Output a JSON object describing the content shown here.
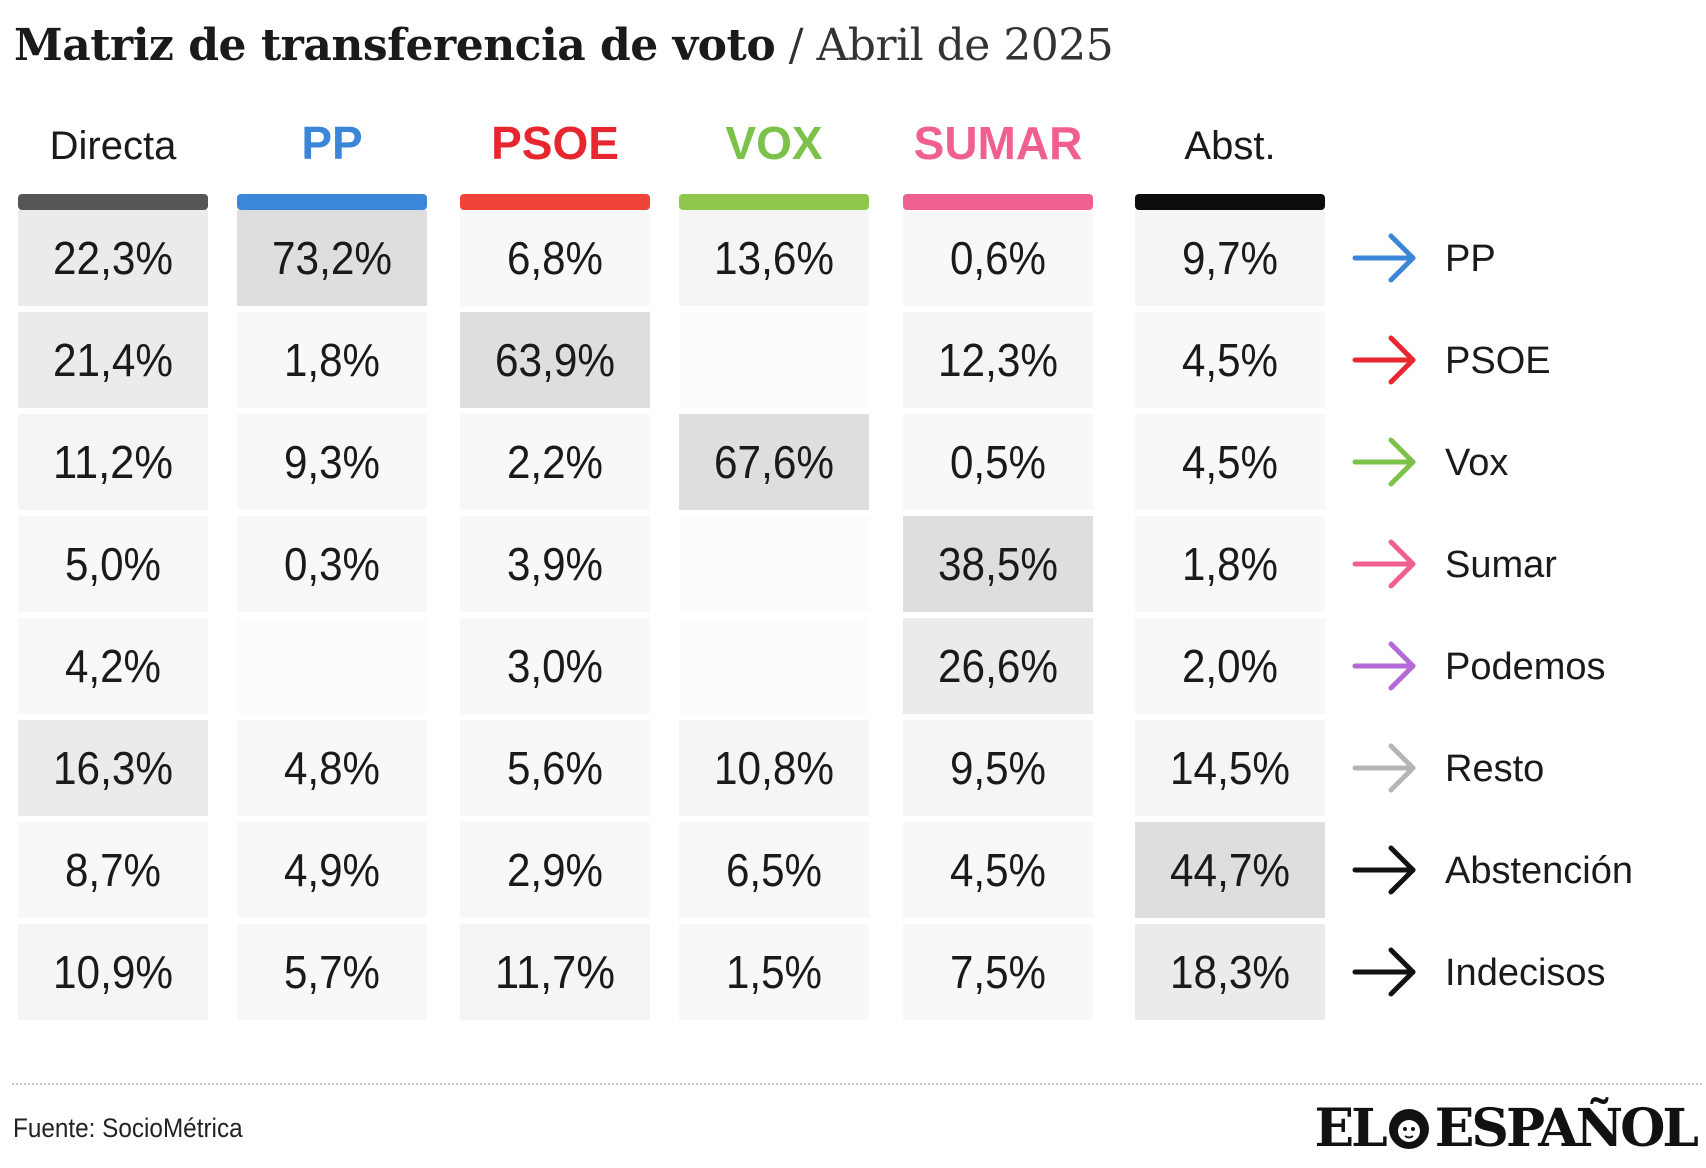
{
  "title": {
    "main": "Matriz de transferencia de voto",
    "separator": "/",
    "sub": "Abril de 2025"
  },
  "chart_data": {
    "type": "table",
    "columns": [
      {
        "label": "Directa",
        "color": "#555555",
        "header_color": "#1a1a1a",
        "bold": false
      },
      {
        "label": "PP",
        "color": "#3b86d8",
        "header_color": "#3b86d8",
        "bold": true
      },
      {
        "label": "PSOE",
        "color": "#f0433a",
        "header_color": "#e8262f",
        "bold": true
      },
      {
        "label": "VOX",
        "color": "#8ec64e",
        "header_color": "#7cc24a",
        "bold": true
      },
      {
        "label": "SUMAR",
        "color": "#f0608e",
        "header_color": "#f0608e",
        "bold": true
      },
      {
        "label": "Abst.",
        "color": "#0d0d0d",
        "header_color": "#1a1a1a",
        "bold": false
      }
    ],
    "rows": [
      {
        "label": "PP",
        "arrow_color": "#3b86d8",
        "values": [
          "22,3%",
          "73,2%",
          "6,8%",
          "13,6%",
          "0,6%",
          "9,7%"
        ]
      },
      {
        "label": "PSOE",
        "arrow_color": "#e8262f",
        "values": [
          "21,4%",
          "1,8%",
          "63,9%",
          "",
          "12,3%",
          "4,5%"
        ]
      },
      {
        "label": "Vox",
        "arrow_color": "#7cc24a",
        "values": [
          "11,2%",
          "9,3%",
          "2,2%",
          "67,6%",
          "0,5%",
          "4,5%"
        ]
      },
      {
        "label": "Sumar",
        "arrow_color": "#f0608e",
        "values": [
          "5,0%",
          "0,3%",
          "3,9%",
          "",
          "38,5%",
          "1,8%"
        ]
      },
      {
        "label": "Podemos",
        "arrow_color": "#b36ad6",
        "values": [
          "4,2%",
          "",
          "3,0%",
          "",
          "26,6%",
          "2,0%"
        ]
      },
      {
        "label": "Resto",
        "arrow_color": "#b5b5b5",
        "values": [
          "16,3%",
          "4,8%",
          "5,6%",
          "10,8%",
          "9,5%",
          "14,5%"
        ]
      },
      {
        "label": "Abstención",
        "arrow_color": "#111111",
        "values": [
          "8,7%",
          "4,9%",
          "2,9%",
          "6,5%",
          "4,5%",
          "44,7%"
        ]
      },
      {
        "label": "Indecisos",
        "arrow_color": "#111111",
        "values": [
          "10,9%",
          "5,7%",
          "11,7%",
          "1,5%",
          "7,5%",
          "18,3%"
        ]
      }
    ]
  },
  "footer": {
    "source": "Fuente: SocioMétrica",
    "logo_left": "EL",
    "logo_right": "ESPAÑOL"
  }
}
